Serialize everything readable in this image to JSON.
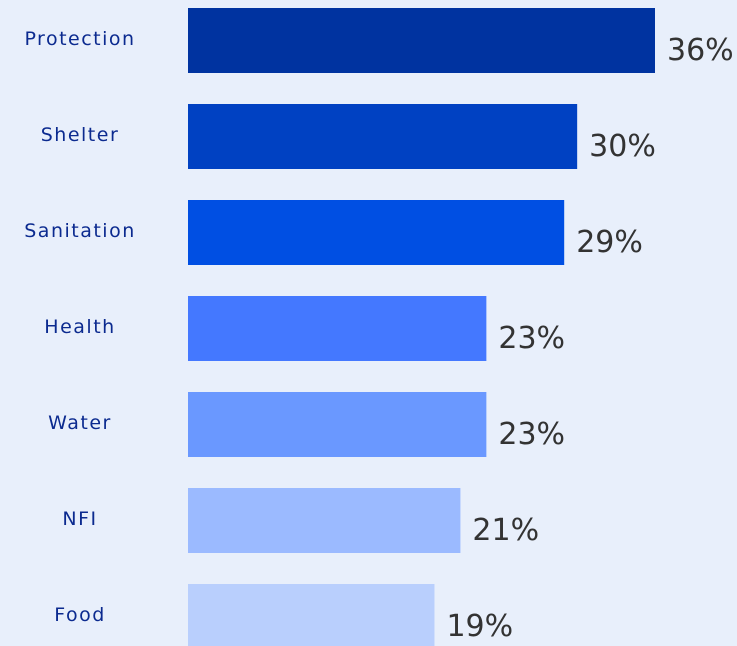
{
  "chart_data": {
    "type": "bar",
    "orientation": "horizontal",
    "categories": [
      "Protection",
      "Shelter",
      "Sanitation",
      "Health",
      "Water",
      "NFI",
      "Food"
    ],
    "values": [
      36,
      30,
      29,
      23,
      23,
      21,
      19
    ],
    "value_labels": [
      "36%",
      "30%",
      "29%",
      "23%",
      "23%",
      "21%",
      "19%"
    ],
    "colors": [
      "#0033a0",
      "#0041c2",
      "#004fe3",
      "#4478ff",
      "#6a98ff",
      "#9bbaff",
      "#b9cffd"
    ]
  }
}
